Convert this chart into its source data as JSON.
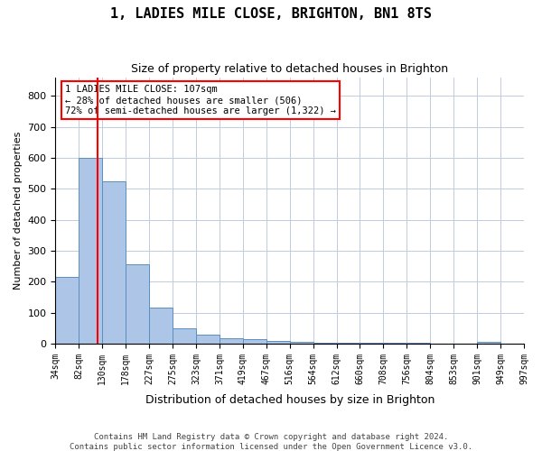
{
  "title1": "1, LADIES MILE CLOSE, BRIGHTON, BN1 8TS",
  "title2": "Size of property relative to detached houses in Brighton",
  "xlabel": "Distribution of detached houses by size in Brighton",
  "ylabel": "Number of detached properties",
  "footer1": "Contains HM Land Registry data © Crown copyright and database right 2024.",
  "footer2": "Contains public sector information licensed under the Open Government Licence v3.0.",
  "bin_labels": [
    "34sqm",
    "82sqm",
    "130sqm",
    "178sqm",
    "227sqm",
    "275sqm",
    "323sqm",
    "371sqm",
    "419sqm",
    "467sqm",
    "516sqm",
    "564sqm",
    "612sqm",
    "660sqm",
    "708sqm",
    "756sqm",
    "804sqm",
    "853sqm",
    "901sqm",
    "949sqm",
    "997sqm"
  ],
  "bar_heights": [
    215,
    600,
    525,
    255,
    115,
    50,
    30,
    18,
    13,
    8,
    5,
    4,
    3,
    3,
    2,
    2,
    1,
    1,
    5,
    1
  ],
  "bar_color": "#adc6e8",
  "bar_edge_color": "#5a8fc0",
  "grid_color": "#c0ccdd",
  "vline_x": 1.28,
  "vline_color": "red",
  "annotation_line1": "1 LADIES MILE CLOSE: 107sqm",
  "annotation_line2": "← 28% of detached houses are smaller (506)",
  "annotation_line3": "72% of semi-detached houses are larger (1,322) →",
  "ylim": [
    0,
    860
  ],
  "yticks": [
    0,
    100,
    200,
    300,
    400,
    500,
    600,
    700,
    800
  ]
}
